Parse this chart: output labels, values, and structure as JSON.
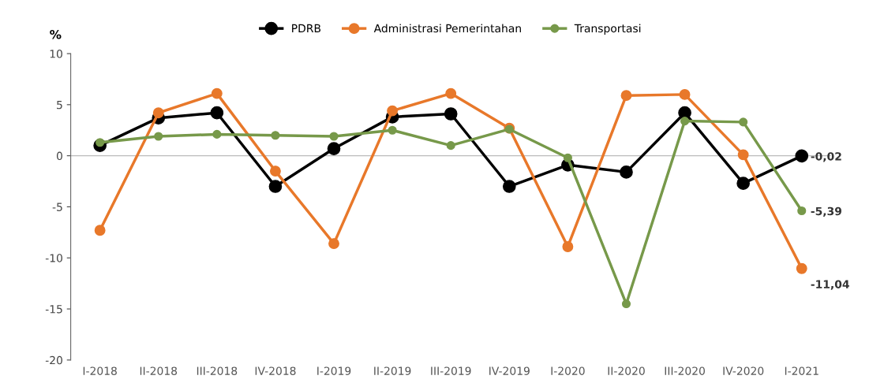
{
  "chart_data": {
    "type": "line",
    "ylabel": "%",
    "categories": [
      "I-2018",
      "II-2018",
      "III-2018",
      "IV-2018",
      "I-2019",
      "II-2019",
      "III-2019",
      "IV-2019",
      "I-2020",
      "II-2020",
      "III-2020",
      "IV-2020",
      "I-2021"
    ],
    "series": [
      {
        "name": "PDRB",
        "color": "#000000",
        "values": [
          1.0,
          3.7,
          4.2,
          -3.0,
          0.7,
          3.8,
          4.1,
          -3.0,
          -0.9,
          -1.6,
          4.2,
          -2.7,
          -0.02
        ],
        "value_labels": [
          null,
          null,
          null,
          null,
          null,
          null,
          null,
          null,
          null,
          null,
          null,
          null,
          "-0,02"
        ]
      },
      {
        "name": "Administrasi Pemerintahan",
        "color": "#e8782a",
        "values": [
          -7.3,
          4.2,
          6.1,
          -1.5,
          -8.6,
          4.4,
          6.1,
          2.7,
          -8.9,
          5.9,
          6.0,
          0.1,
          -11.04
        ],
        "value_labels": [
          null,
          null,
          null,
          null,
          null,
          null,
          null,
          null,
          null,
          null,
          null,
          null,
          "-11,04"
        ]
      },
      {
        "name": "Transportasi",
        "color": "#77994a",
        "values": [
          1.3,
          1.9,
          2.1,
          2.0,
          1.9,
          2.5,
          1.0,
          2.6,
          -0.2,
          -14.5,
          3.4,
          3.3,
          -5.39
        ],
        "value_labels": [
          null,
          null,
          null,
          null,
          null,
          null,
          null,
          null,
          null,
          null,
          null,
          null,
          "-5,39"
        ]
      }
    ],
    "ylim": [
      -20,
      10
    ],
    "yticks": [
      -20,
      -15,
      -10,
      -5,
      0,
      5,
      10
    ],
    "grid": false,
    "ref_lines": [
      {
        "axis": "y",
        "value": 0,
        "color": "#bbbbbb"
      }
    ],
    "legend": "top",
    "marker": "circle",
    "line_style": "solid"
  }
}
